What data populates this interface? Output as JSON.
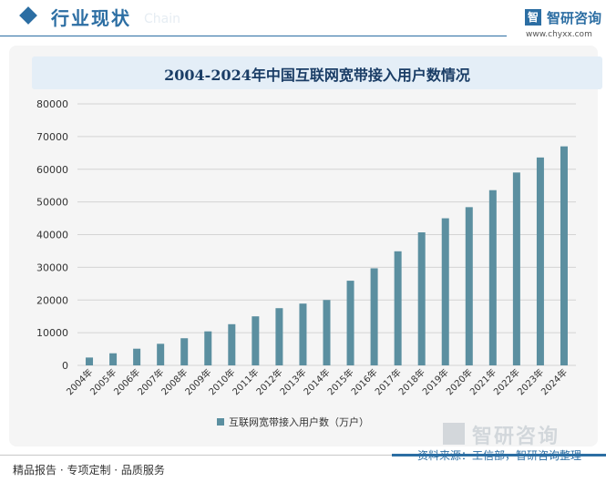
{
  "header": {
    "section_title": "行业现状",
    "ghost_text": "Chain",
    "logo_mark": "智",
    "logo_name": "智研咨询",
    "logo_url": "www.chyxx.com"
  },
  "chart_data": {
    "type": "bar",
    "title": "2004-2024年中国互联网宽带接入用户数情况",
    "categories": [
      "2004年",
      "2005年",
      "2006年",
      "2007年",
      "2008年",
      "2009年",
      "2010年",
      "2011年",
      "2012年",
      "2013年",
      "2014年",
      "2015年",
      "2016年",
      "2017年",
      "2018年",
      "2019年",
      "2020年",
      "2021年",
      "2022年",
      "2023年",
      "2024年"
    ],
    "series": [
      {
        "name": "互联网宽带接入用户数（万户）",
        "values": [
          2400,
          3700,
          5100,
          6600,
          8300,
          10400,
          12600,
          15000,
          17500,
          18900,
          20000,
          25900,
          29700,
          34900,
          40700,
          45000,
          48400,
          53600,
          59000,
          63600,
          67000
        ]
      }
    ],
    "ylim": [
      0,
      80000
    ],
    "yticks": [
      "0",
      "10000",
      "20000",
      "30000",
      "40000",
      "50000",
      "60000",
      "70000",
      "80000"
    ],
    "grid": true,
    "legend_position": "bottom",
    "colors": {
      "bar": "#5b8fa0",
      "grid": "#d4d4d4"
    }
  },
  "footer": {
    "left": "精品报告 · 专项定制 · 品质服务",
    "right": "资料来源：工信部，智研咨询整理",
    "watermark_name": "智研咨询"
  }
}
